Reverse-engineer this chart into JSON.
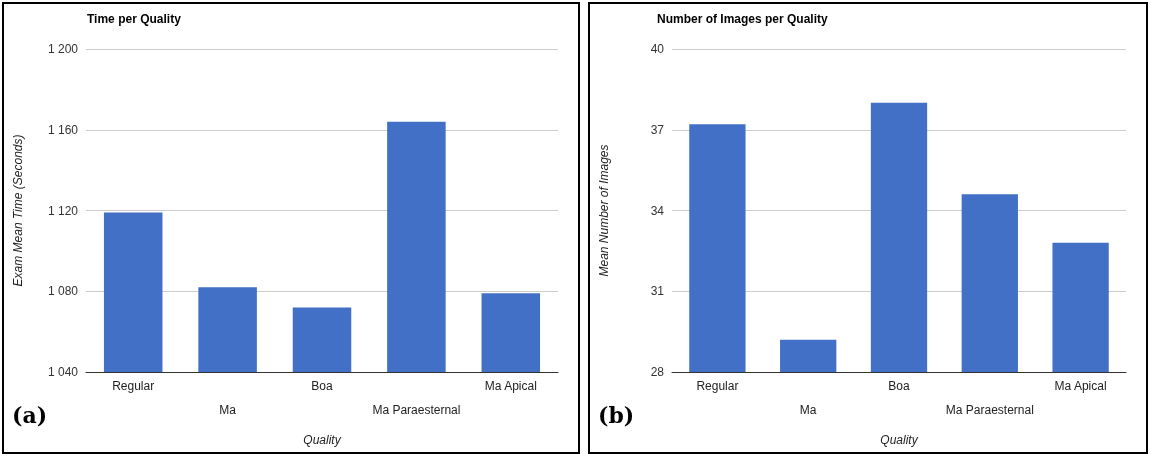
{
  "chart_data": [
    {
      "type": "bar",
      "title": "Time per Quality",
      "xlabel": "Quality",
      "ylabel": "Exam Mean Time (Seconds)",
      "categories": [
        "Regular",
        "Ma",
        "Boa",
        "Ma Paraesternal",
        "Ma Apical"
      ],
      "values": [
        1119,
        1082,
        1072,
        1164,
        1079
      ],
      "color": "#4270c6",
      "ylim": [
        1040,
        1200
      ],
      "yticks": [
        {
          "value": 1040,
          "label": "1 040"
        },
        {
          "value": 1080,
          "label": "1 080"
        },
        {
          "value": 1120,
          "label": "1 120"
        },
        {
          "value": 1160,
          "label": "1 160"
        },
        {
          "value": 1200,
          "label": "1 200"
        }
      ],
      "grid": "y",
      "annotations": [
        "(a)"
      ]
    },
    {
      "type": "bar",
      "title": "Number of Images per Quality",
      "xlabel": "Quality",
      "ylabel": "Mean Number of Images",
      "categories": [
        "Regular",
        "Ma",
        "Boa",
        "Ma Paraesternal",
        "Ma Apical"
      ],
      "values": [
        37.2,
        29.2,
        38.0,
        34.6,
        32.8
      ],
      "color": "#4270c6",
      "ylim": [
        28,
        40
      ],
      "yticks": [
        28,
        31,
        34,
        37,
        40
      ],
      "grid": "y",
      "annotations": [
        "(b)"
      ]
    }
  ]
}
